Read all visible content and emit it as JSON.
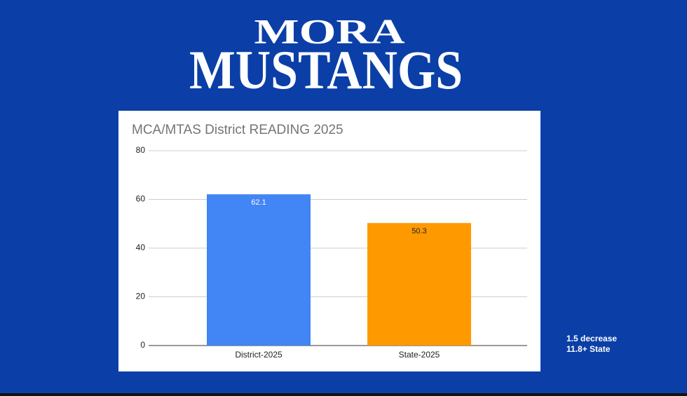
{
  "logo": {
    "line1": "MORA",
    "line2": "MUSTANGS"
  },
  "chart_data": {
    "type": "bar",
    "title": "MCA/MTAS District READING 2025",
    "categories": [
      "District-2025",
      "State-2025"
    ],
    "values": [
      62.1,
      50.3
    ],
    "colors": [
      "#4285f4",
      "#ff9900"
    ],
    "ylim": [
      0,
      80
    ],
    "yticks": [
      0,
      20,
      40,
      60,
      80
    ],
    "grid": true
  },
  "notes": [
    "1.5 decrease",
    "11.8+ State"
  ]
}
